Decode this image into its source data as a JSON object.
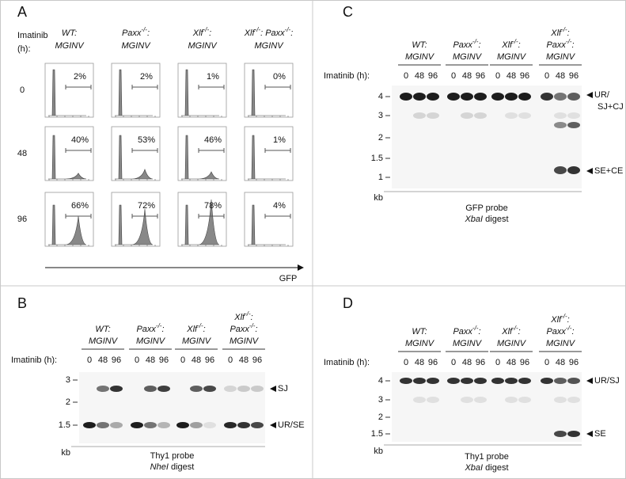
{
  "panel_a": {
    "label": "A",
    "imatinib": [
      "Imatinib",
      "(h):"
    ],
    "genotypes": [
      [
        [
          {
            "t": "WT:"
          }
        ],
        [
          {
            "t": "MGINV"
          }
        ]
      ],
      [
        [
          {
            "t": "Paxx"
          },
          {
            "t": "-/-",
            "sup": true
          },
          {
            "t": ":"
          }
        ],
        [
          {
            "t": "MGINV"
          }
        ]
      ],
      [
        [
          {
            "t": "Xlf"
          },
          {
            "t": "-/-",
            "sup": true
          },
          {
            "t": ":"
          }
        ],
        [
          {
            "t": "MGINV"
          }
        ]
      ],
      [
        [
          {
            "t": "Xlf"
          },
          {
            "t": "-/-",
            "sup": true
          },
          {
            "t": ": Paxx"
          },
          {
            "t": "-/-",
            "sup": true
          },
          {
            "t": ":"
          }
        ],
        [
          {
            "t": "MGINV"
          }
        ]
      ]
    ],
    "rows": [
      {
        "time": "0",
        "percents": [
          "2%",
          "2%",
          "1%",
          "0%"
        ]
      },
      {
        "time": "48",
        "percents": [
          "40%",
          "53%",
          "46%",
          "1%"
        ]
      },
      {
        "time": "96",
        "percents": [
          "66%",
          "72%",
          "78%",
          "4%"
        ]
      }
    ],
    "x_axis": "GFP"
  },
  "panel_b": {
    "label": "B",
    "genotypes": [
      [
        [
          {
            "t": "WT:"
          }
        ],
        [
          {
            "t": "MGINV"
          }
        ]
      ],
      [
        [
          {
            "t": "Paxx"
          },
          {
            "t": "-/-",
            "sup": true
          },
          {
            "t": ":"
          }
        ],
        [
          {
            "t": "MGINV"
          }
        ]
      ],
      [
        [
          {
            "t": "Xlf"
          },
          {
            "t": "-/-",
            "sup": true
          },
          {
            "t": ":"
          }
        ],
        [
          {
            "t": "MGINV"
          }
        ]
      ],
      [
        [
          {
            "t": "Xlf"
          },
          {
            "t": "-/-",
            "sup": true
          },
          {
            "t": ":"
          }
        ],
        [
          {
            "t": "Paxx"
          },
          {
            "t": "-/-",
            "sup": true
          },
          {
            "t": ":"
          }
        ],
        [
          {
            "t": "MGINV"
          }
        ]
      ]
    ],
    "imatinib": "Imatinib (h):",
    "times": [
      "0",
      "48",
      "96"
    ],
    "markers": [
      "3",
      "2",
      "1.5"
    ],
    "unit": "kb",
    "bands": [
      [
        "SJ"
      ],
      [
        "UR/SE"
      ]
    ],
    "probe": "Thy1 probe",
    "enzyme": "NheI",
    "digest": "digest"
  },
  "panel_c": {
    "label": "C",
    "genotypes": [
      [
        [
          {
            "t": "WT:"
          }
        ],
        [
          {
            "t": "MGINV"
          }
        ]
      ],
      [
        [
          {
            "t": "Paxx"
          },
          {
            "t": "-/-",
            "sup": true
          },
          {
            "t": ":"
          }
        ],
        [
          {
            "t": "MGINV"
          }
        ]
      ],
      [
        [
          {
            "t": "Xlf"
          },
          {
            "t": "-/-",
            "sup": true
          },
          {
            "t": ":"
          }
        ],
        [
          {
            "t": "MGINV"
          }
        ]
      ],
      [
        [
          {
            "t": "Xlf"
          },
          {
            "t": "-/-",
            "sup": true
          },
          {
            "t": ":"
          }
        ],
        [
          {
            "t": "Paxx"
          },
          {
            "t": "-/-",
            "sup": true
          },
          {
            "t": ":"
          }
        ],
        [
          {
            "t": "MGINV"
          }
        ]
      ]
    ],
    "imatinib": "Imatinib (h):",
    "times": [
      "0",
      "48",
      "96"
    ],
    "markers": [
      "4",
      "3",
      "2",
      "1.5",
      "1"
    ],
    "unit": "kb",
    "bands": [
      [
        "UR/",
        "SJ+CJ"
      ],
      [
        "SE+CE"
      ]
    ],
    "probe": "GFP probe",
    "enzyme": "XbaI",
    "digest": "digest"
  },
  "panel_d": {
    "label": "D",
    "genotypes": [
      [
        [
          {
            "t": "WT:"
          }
        ],
        [
          {
            "t": "MGINV"
          }
        ]
      ],
      [
        [
          {
            "t": "Paxx"
          },
          {
            "t": "-/-",
            "sup": true
          },
          {
            "t": ":"
          }
        ],
        [
          {
            "t": "MGINV"
          }
        ]
      ],
      [
        [
          {
            "t": "Xlf"
          },
          {
            "t": "-/-",
            "sup": true
          },
          {
            "t": ":"
          }
        ],
        [
          {
            "t": "MGINV"
          }
        ]
      ],
      [
        [
          {
            "t": "Xlf"
          },
          {
            "t": "-/-",
            "sup": true
          },
          {
            "t": ":"
          }
        ],
        [
          {
            "t": "Paxx"
          },
          {
            "t": "-/-",
            "sup": true
          },
          {
            "t": ":"
          }
        ],
        [
          {
            "t": "MGINV"
          }
        ]
      ]
    ],
    "imatinib": "Imatinib (h):",
    "times": [
      "0",
      "48",
      "96"
    ],
    "markers": [
      "4",
      "3",
      "2",
      "1.5"
    ],
    "unit": "kb",
    "bands": [
      [
        "UR/SJ"
      ],
      [
        "SE"
      ]
    ],
    "probe": "Thy1 probe",
    "enzyme": "XbaI",
    "digest": "digest"
  }
}
